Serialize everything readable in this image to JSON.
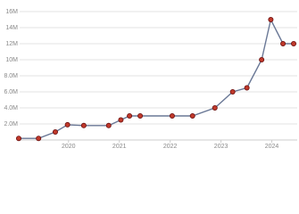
{
  "chart_data": {
    "type": "line",
    "x": [
      2019.02,
      2019.41,
      2019.74,
      2019.98,
      2020.3,
      2020.79,
      2021.03,
      2021.2,
      2021.41,
      2022.04,
      2022.44,
      2022.88,
      2023.23,
      2023.51,
      2023.8,
      2023.98,
      2024.22,
      2024.43
    ],
    "series": [
      {
        "color": "#6a7896",
        "values": [
          200000,
          200000,
          1000000,
          1900000,
          1800000,
          1800000,
          2500000,
          3000000,
          3000000,
          3000000,
          3000000,
          4000000,
          6000000,
          6500000,
          10000000,
          15000000,
          12000000,
          12000000
        ]
      }
    ],
    "xlim": [
      2018.95,
      2024.5
    ],
    "xticks": [
      2020,
      2021,
      2022,
      2023,
      2024
    ],
    "ylim": [
      0,
      16000000
    ],
    "yticks": [
      {
        "value": 2000000,
        "label": "2.0M"
      },
      {
        "value": 4000000,
        "label": "4.0M"
      },
      {
        "value": 6000000,
        "label": "6.0M"
      },
      {
        "value": 8000000,
        "label": "8.0M"
      },
      {
        "value": 10000000,
        "label": "10M"
      },
      {
        "value": 12000000,
        "label": "12M"
      },
      {
        "value": 14000000,
        "label": "14M"
      },
      {
        "value": 16000000,
        "label": "16M"
      }
    ],
    "grid": true,
    "marker_color": "#c0392b"
  }
}
